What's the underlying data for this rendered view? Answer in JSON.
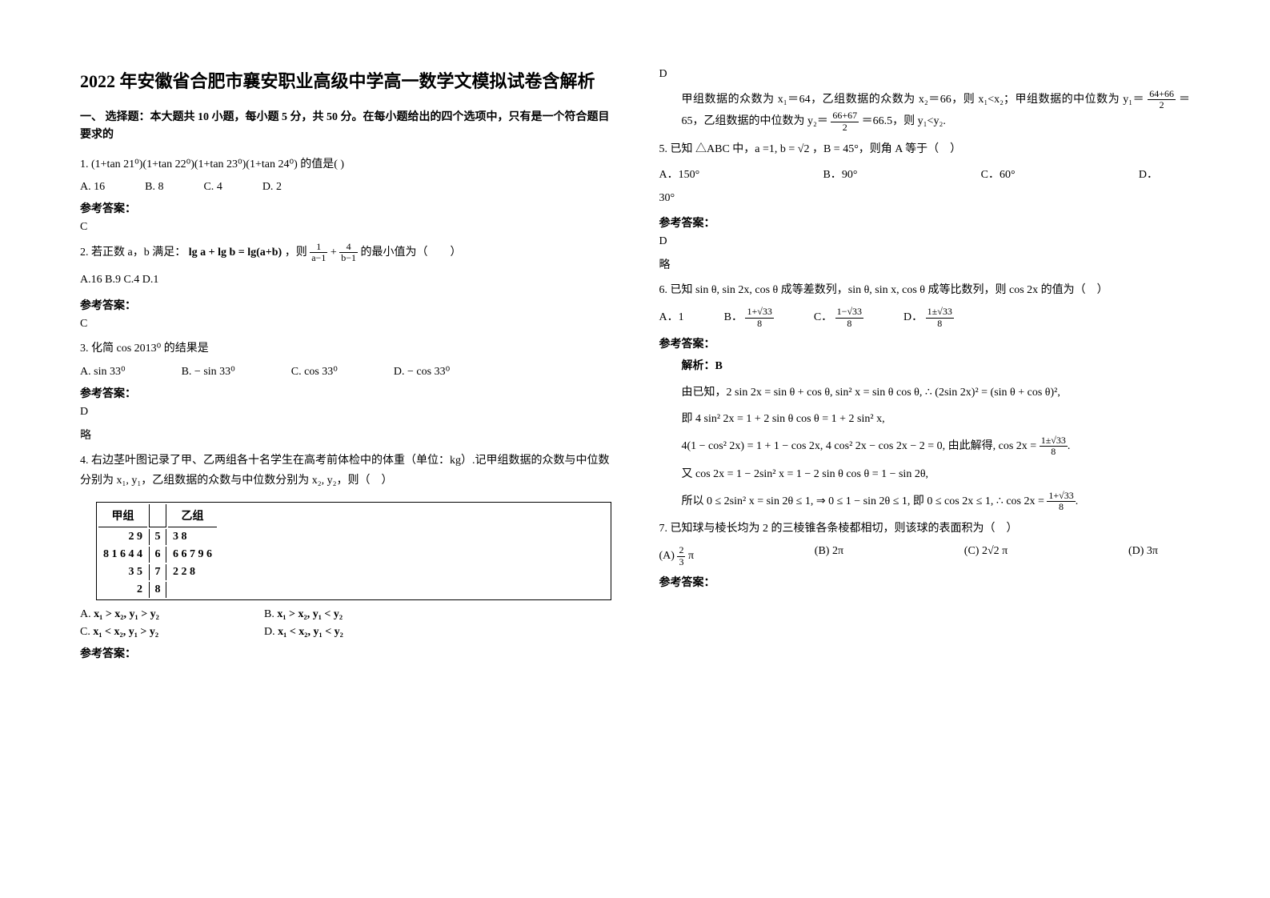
{
  "title": "2022 年安徽省合肥市襄安职业高级中学高一数学文模拟试卷含解析",
  "section1": "一、 选择题：本大题共 10 小题，每小题 5 分，共 50 分。在每小题给出的四个选项中，只有是一个符合题目要求的",
  "q1": {
    "num": "1.",
    "text": "(1+tan 21⁰)(1+tan 22⁰)(1+tan 23⁰)(1+tan 24⁰) 的值是( )",
    "A": "16",
    "B": "8",
    "C": "4",
    "D": "2",
    "ans_label": "参考答案：",
    "ans": "C"
  },
  "q2": {
    "num": "2.",
    "text_pre": "若正数 a，b 满足：",
    "eq": "lg a + lg b = lg(a+b)",
    "text_mid": "，则",
    "frac1_num": "1",
    "frac1_den": "a−1",
    "plus": "+",
    "frac2_num": "4",
    "frac2_den": "b−1",
    "text_post": "的最小值为（　　）",
    "opts": "A.16 B.9 C.4 D.1",
    "ans_label": "参考答案：",
    "ans": "C"
  },
  "q3": {
    "num": "3.",
    "text": "化简 cos 2013⁰ 的结果是",
    "A": "sin 33⁰",
    "B": "− sin 33⁰",
    "C": "cos 33⁰",
    "D": "− cos 33⁰",
    "ans_label": "参考答案：",
    "ans": "D",
    "note": "略"
  },
  "q4": {
    "num": "4.",
    "text": "右边茎叶图记录了甲、乙两组各十名学生在高考前体检中的体重（单位：kg）.记甲组数据的众数与中位数分别为 x₁, y₁，乙组数据的众数与中位数分别为 x₂, y₂，则（　）",
    "plot_headers": [
      "甲组",
      "",
      "乙组"
    ],
    "plot_rows": [
      [
        "2 9",
        "5",
        "3 8"
      ],
      [
        "8 1 6 4 4",
        "6",
        "6 6 7 9 6"
      ],
      [
        "3 5",
        "7",
        "2 2 8"
      ],
      [
        "2",
        "8",
        ""
      ]
    ],
    "A": "x₁ > x₂, y₁ > y₂",
    "B": "x₁ > x₂, y₁ < y₂",
    "C": "x₁ < x₂, y₁ > y₂",
    "D": "x₁ < x₂, y₁ < y₂",
    "ans_label": "参考答案：",
    "ans": "D",
    "expl_pre": "甲组数据的众数为 x₁＝64，乙组数据的众数为 x₂＝66，则 x₁<x₂；甲组数据的中位数为 y₁＝",
    "expl_f1n": "64+66",
    "expl_f1d": "2",
    "expl_mid": "＝65，乙组数据的中位数为 y₂＝",
    "expl_f2n": "66+67",
    "expl_f2d": "2",
    "expl_post": "＝66.5，则 y₁<y₂."
  },
  "q5": {
    "num": "5.",
    "text": "已知 △ABC 中，a =1, b = √2 ，B = 45°，则角 A 等于（　）",
    "A": "150°",
    "B": "90°",
    "C": "60°",
    "D": "30°",
    "ans_label": "参考答案：",
    "ans": "D",
    "note": "略"
  },
  "q6": {
    "num": "6.",
    "text": "已知 sin θ, sin 2x, cos θ 成等差数列，sin θ, sin x, cos θ 成等比数列，则 cos 2x 的值为（　）",
    "A": "1",
    "Bn": "1+√33",
    "Bd": "8",
    "Cn": "1−√33",
    "Cd": "8",
    "Dn": "1±√33",
    "Dd": "8",
    "ans_label": "参考答案：",
    "opt_labels": {
      "A": "A．",
      "B": "B．",
      "C": "C．",
      "D": "D．"
    },
    "sol_label": "解析：B",
    "l1_a": "由已知，2 sin 2x = sin θ + cos θ,  sin² x = sin θ cos θ, ∴ (2sin 2x)² = (sin θ + cos θ)²,",
    "l2": "即 4 sin² 2x = 1 + 2 sin θ cos θ = 1 + 2 sin² x,",
    "l3_a": "4(1 − cos² 2x) = 1 + 1 − cos 2x,  4 cos² 2x − cos 2x − 2 = 0,",
    "l3_b": "由此解得, cos 2x =",
    "l3_fn": "1±√33",
    "l3_fd": "8",
    "l4": "又 cos 2x = 1 − 2sin² x = 1 − 2 sin θ cos θ = 1 − sin 2θ,",
    "l5_a": "所以 0 ≤ 2sin² x = sin 2θ ≤ 1, ⇒ 0 ≤ 1 − sin 2θ ≤ 1,  即 0 ≤ cos 2x ≤ 1, ∴ cos 2x =",
    "l5_fn": "1+√33",
    "l5_fd": "8"
  },
  "q7": {
    "num": "7.",
    "text": "已知球与棱长均为 2 的三棱锥各条棱都相切，则该球的表面积为（　）",
    "A_pre": "(A)",
    "A_fn": "2",
    "A_fd": "3",
    "A_post": "π",
    "B": "(B) 2π",
    "C": "(C) 2√2 π",
    "D": "(D) 3π",
    "ans_label": "参考答案："
  },
  "style": {
    "page_bg": "#ffffff",
    "text_color": "#000000",
    "title_fontsize": 22,
    "body_fontsize": 14,
    "font_family": "SimSun"
  }
}
